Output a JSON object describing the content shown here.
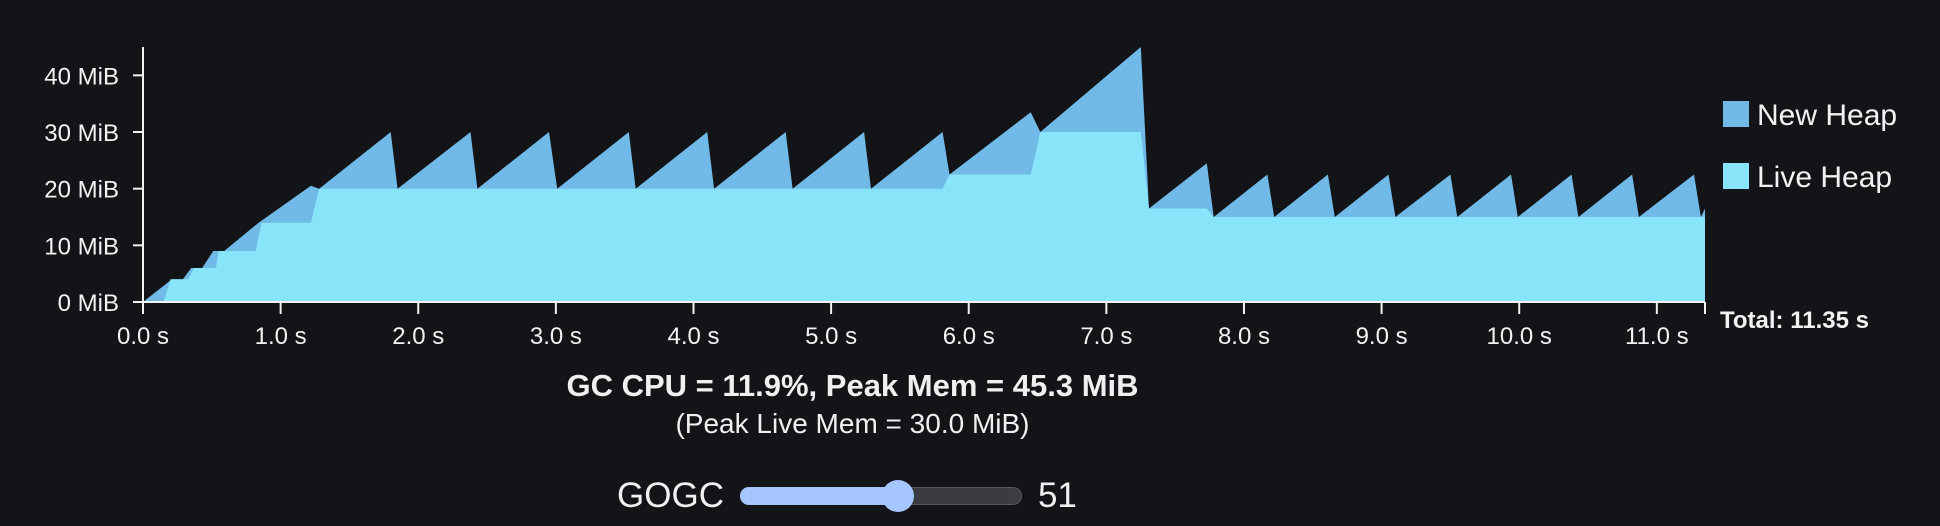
{
  "chart_data": {
    "type": "area",
    "xlim": [
      0,
      11.35
    ],
    "ylim": [
      0,
      45
    ],
    "xunit": "s",
    "yunit": "MiB",
    "x_ticks": [
      {
        "value": 0,
        "label": "0.0 s"
      },
      {
        "value": 1,
        "label": "1.0 s"
      },
      {
        "value": 2,
        "label": "2.0 s"
      },
      {
        "value": 3,
        "label": "3.0 s"
      },
      {
        "value": 4,
        "label": "4.0 s"
      },
      {
        "value": 5,
        "label": "5.0 s"
      },
      {
        "value": 6,
        "label": "6.0 s"
      },
      {
        "value": 7,
        "label": "7.0 s"
      },
      {
        "value": 8,
        "label": "8.0 s"
      },
      {
        "value": 9,
        "label": "9.0 s"
      },
      {
        "value": 10,
        "label": "10.0 s"
      },
      {
        "value": 11,
        "label": "11.0 s"
      }
    ],
    "y_ticks": [
      {
        "value": 0,
        "label": "0 MiB"
      },
      {
        "value": 10,
        "label": "10 MiB"
      },
      {
        "value": 20,
        "label": "20 MiB"
      },
      {
        "value": 30,
        "label": "30 MiB"
      },
      {
        "value": 40,
        "label": "40 MiB"
      }
    ],
    "legend_position": "right",
    "total_label": "Total: 11.35 s",
    "series": [
      {
        "name": "New Heap",
        "color": "#71b9e7",
        "stacked_on": "Live Heap",
        "points": [
          [
            0.0,
            0.0
          ],
          [
            0.21,
            4.0
          ],
          [
            0.21,
            4.0
          ],
          [
            0.29,
            4.0
          ],
          [
            0.35,
            6.0
          ],
          [
            0.43,
            6.0
          ],
          [
            0.51,
            9.0
          ],
          [
            0.59,
            9.0
          ],
          [
            0.84,
            14.0
          ],
          [
            1.22,
            20.5
          ],
          [
            1.28,
            20.0
          ],
          [
            1.8,
            30.0
          ],
          [
            1.85,
            20.0
          ],
          [
            2.38,
            30.0
          ],
          [
            2.43,
            20.0
          ],
          [
            2.95,
            30.0
          ],
          [
            3.01,
            20.0
          ],
          [
            3.53,
            30.0
          ],
          [
            3.58,
            20.0
          ],
          [
            4.1,
            30.0
          ],
          [
            4.15,
            20.0
          ],
          [
            4.67,
            30.0
          ],
          [
            4.72,
            20.0
          ],
          [
            5.24,
            30.0
          ],
          [
            5.29,
            20.0
          ],
          [
            5.81,
            30.0
          ],
          [
            5.86,
            22.5
          ],
          [
            6.45,
            33.5
          ],
          [
            6.52,
            30.0
          ],
          [
            7.25,
            45.0
          ],
          [
            7.31,
            16.5
          ],
          [
            7.73,
            24.5
          ],
          [
            7.78,
            15.0
          ],
          [
            8.17,
            22.5
          ],
          [
            8.22,
            15.0
          ],
          [
            8.61,
            22.5
          ],
          [
            8.66,
            15.0
          ],
          [
            9.05,
            22.5
          ],
          [
            9.1,
            15.0
          ],
          [
            9.5,
            22.5
          ],
          [
            9.55,
            15.0
          ],
          [
            9.94,
            22.5
          ],
          [
            9.99,
            15.0
          ],
          [
            10.38,
            22.5
          ],
          [
            10.43,
            15.0
          ],
          [
            10.82,
            22.5
          ],
          [
            10.87,
            15.0
          ],
          [
            11.27,
            22.5
          ],
          [
            11.32,
            15.0
          ],
          [
            11.35,
            16.5
          ],
          [
            11.35,
            0.0
          ]
        ]
      },
      {
        "name": "Live Heap",
        "color": "#88e4f8",
        "points": [
          [
            0.0,
            0.0
          ],
          [
            0.15,
            0.0
          ],
          [
            0.2,
            4.0
          ],
          [
            0.33,
            4.0
          ],
          [
            0.37,
            6.0
          ],
          [
            0.53,
            6.0
          ],
          [
            0.55,
            9.0
          ],
          [
            0.82,
            9.0
          ],
          [
            0.86,
            14.0
          ],
          [
            1.22,
            14.0
          ],
          [
            1.28,
            20.0
          ],
          [
            5.81,
            20.0
          ],
          [
            5.86,
            22.5
          ],
          [
            6.45,
            22.5
          ],
          [
            6.52,
            30.0
          ],
          [
            7.25,
            30.0
          ],
          [
            7.31,
            16.5
          ],
          [
            7.73,
            16.5
          ],
          [
            7.78,
            15.0
          ],
          [
            11.35,
            15.0
          ],
          [
            11.35,
            0.0
          ]
        ]
      }
    ]
  },
  "summary": {
    "main": "GC CPU = 11.9%, Peak Mem = 45.3 MiB",
    "sub": "(Peak Live Mem = 30.0 MiB)"
  },
  "controls": {
    "gogc_label": "GOGC",
    "gogc_value": "51",
    "gogc_fraction": 0.56
  }
}
